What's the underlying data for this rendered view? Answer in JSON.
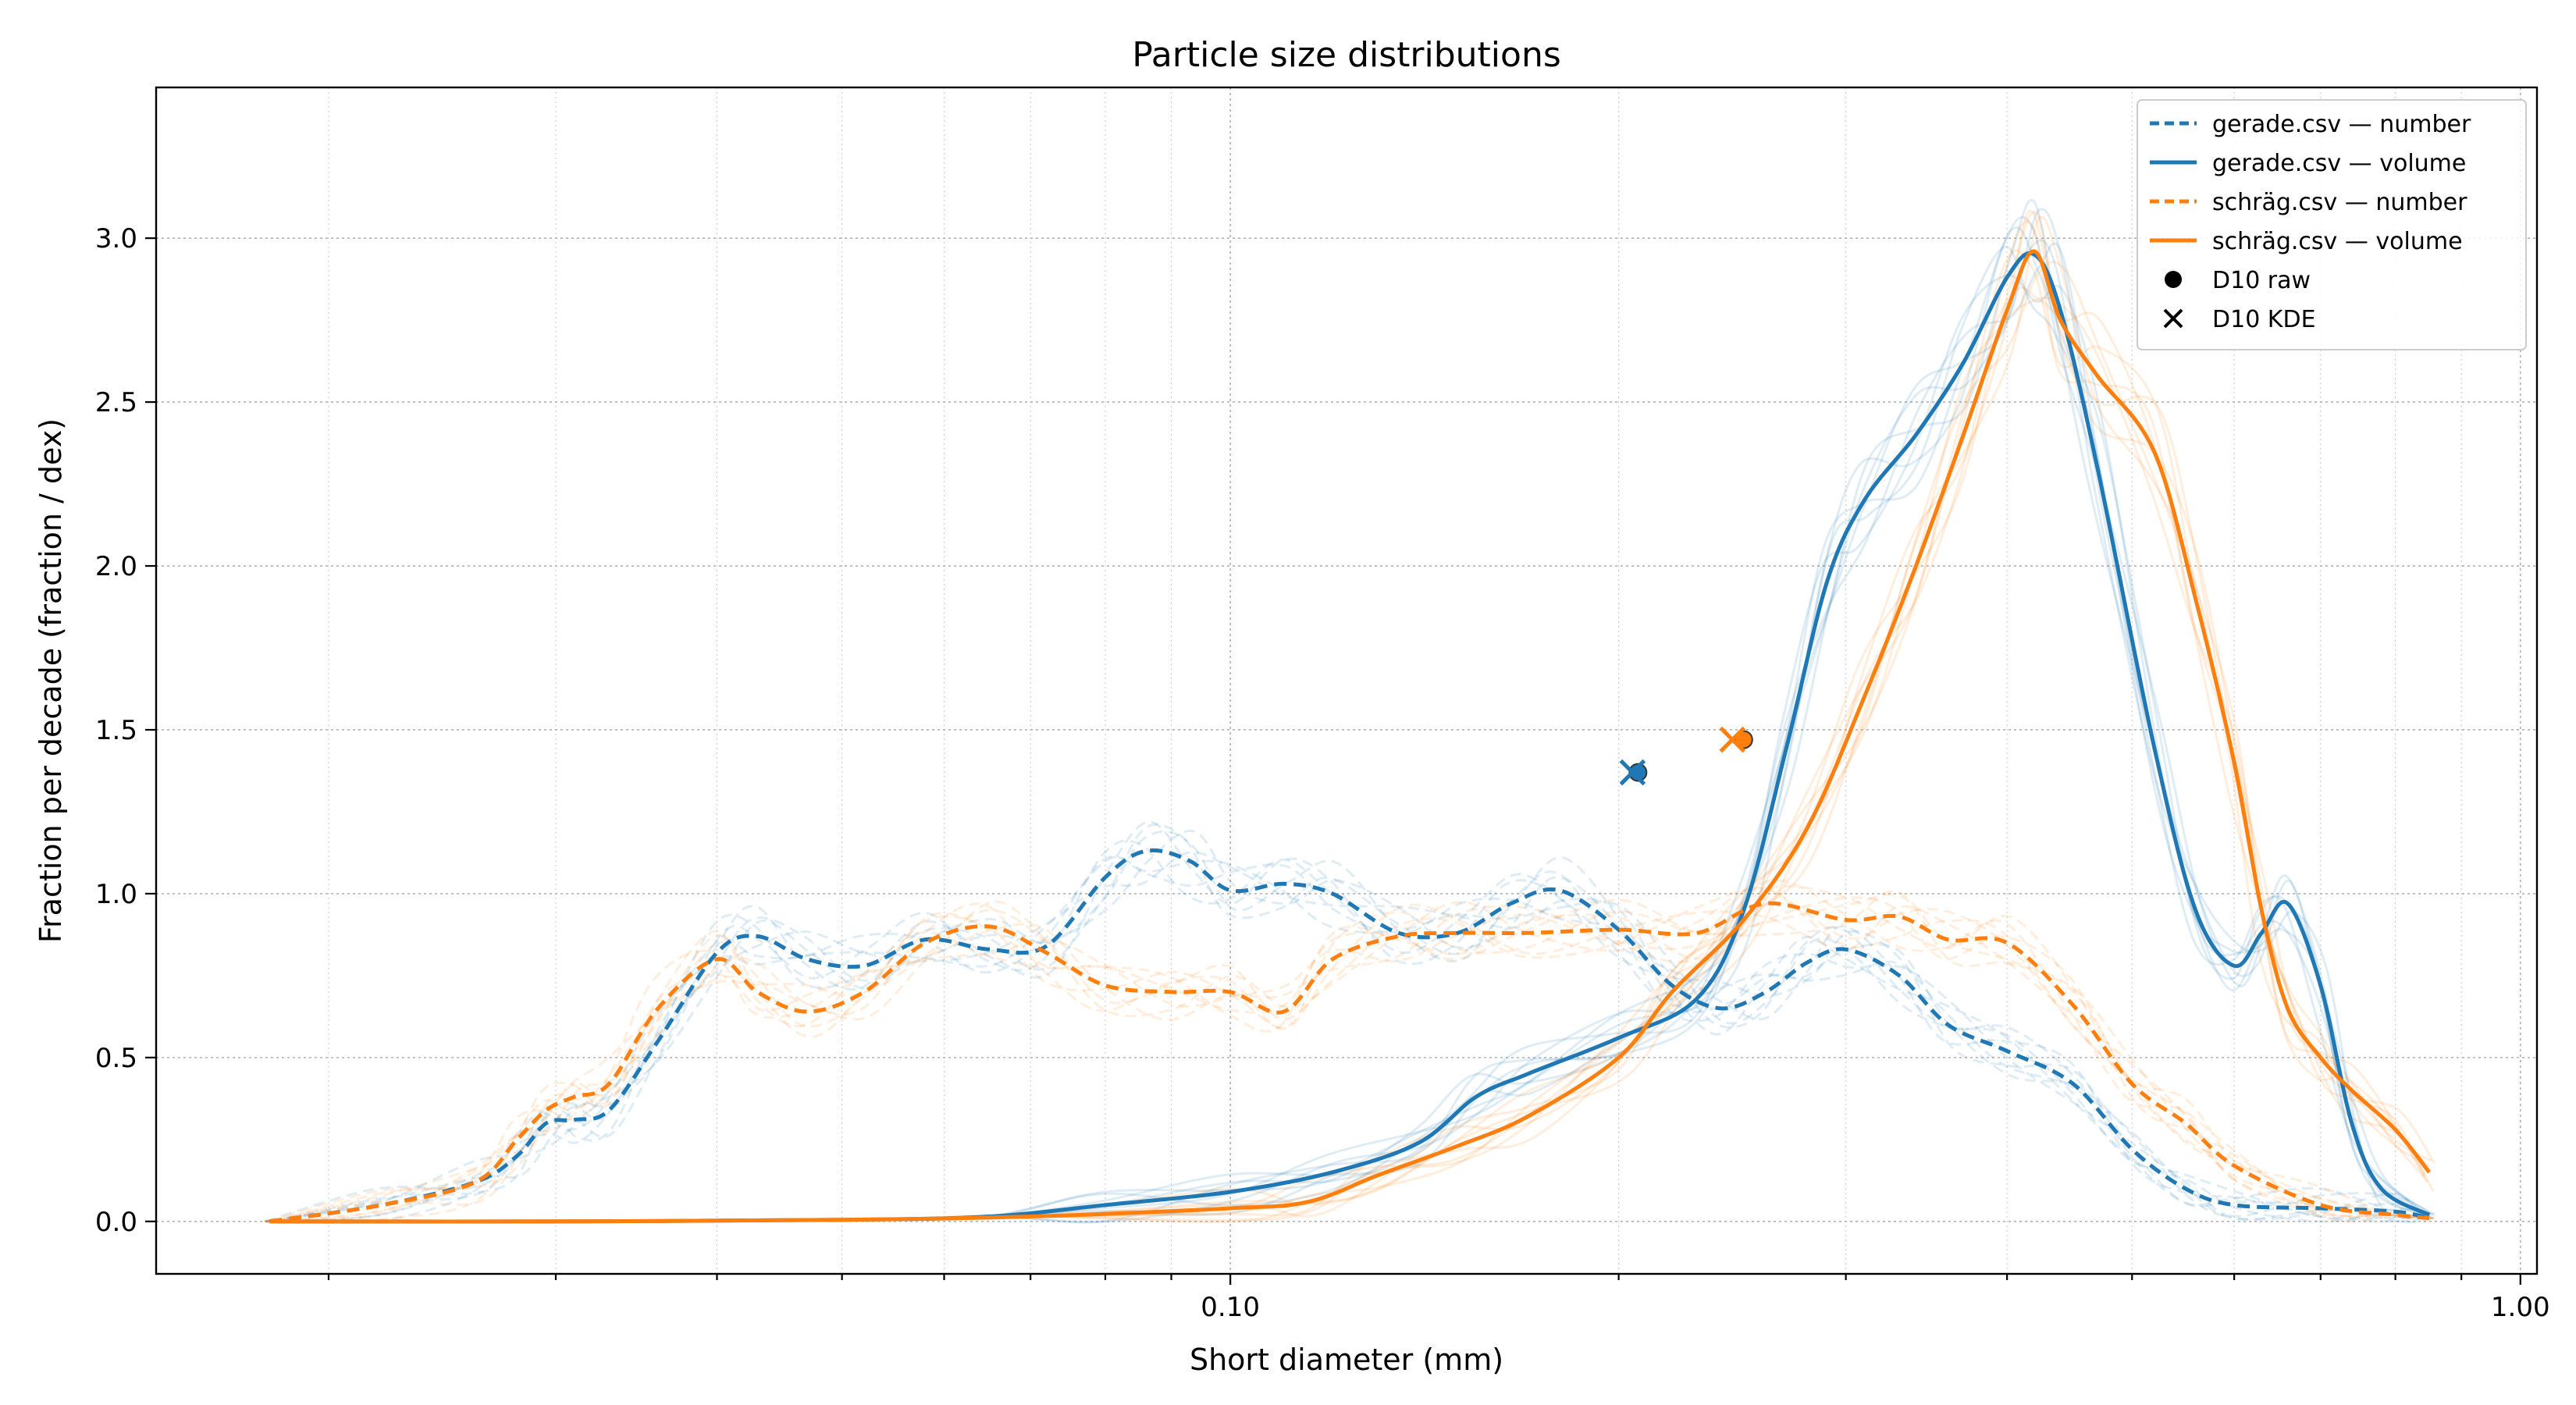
{
  "colors": {
    "blue": "#1f77b4",
    "orange": "#ff7f0e"
  },
  "chart_data": {
    "type": "line",
    "title": "Particle size distributions",
    "xlabel": "Short diameter (mm)",
    "ylabel": "Fraction per decade (fraction / dex)",
    "xscale": "log",
    "xlim": [
      0.0147,
      1.03
    ],
    "ylim": [
      -0.16,
      3.46
    ],
    "xticks": [
      {
        "value": 0.1,
        "label": "0.10"
      },
      {
        "value": 1.0,
        "label": "1.00"
      }
    ],
    "yticks": [
      {
        "value": 0.0,
        "label": "0.0"
      },
      {
        "value": 0.5,
        "label": "0.5"
      },
      {
        "value": 1.0,
        "label": "1.0"
      },
      {
        "value": 1.5,
        "label": "1.5"
      },
      {
        "value": 2.0,
        "label": "2.0"
      },
      {
        "value": 2.5,
        "label": "2.5"
      },
      {
        "value": 3.0,
        "label": "3.0"
      }
    ],
    "grid": true,
    "legend_position": "top-right",
    "series": [
      {
        "name": "gerade.csv — number",
        "color": "#1f77b4",
        "dash": true,
        "x": [
          0.018,
          0.022,
          0.026,
          0.028,
          0.0295,
          0.031,
          0.033,
          0.036,
          0.04,
          0.043,
          0.047,
          0.052,
          0.058,
          0.065,
          0.072,
          0.08,
          0.086,
          0.093,
          0.1,
          0.11,
          0.12,
          0.135,
          0.15,
          0.165,
          0.18,
          0.2,
          0.22,
          0.24,
          0.26,
          0.28,
          0.3,
          0.33,
          0.36,
          0.4,
          0.45,
          0.5,
          0.55,
          0.6,
          0.7,
          0.8,
          0.85
        ],
        "y": [
          0.0,
          0.05,
          0.12,
          0.2,
          0.3,
          0.31,
          0.34,
          0.55,
          0.82,
          0.87,
          0.8,
          0.78,
          0.86,
          0.83,
          0.84,
          1.05,
          1.13,
          1.1,
          1.01,
          1.03,
          1.0,
          0.88,
          0.88,
          0.97,
          1.01,
          0.89,
          0.72,
          0.65,
          0.7,
          0.79,
          0.83,
          0.75,
          0.6,
          0.52,
          0.42,
          0.22,
          0.1,
          0.05,
          0.04,
          0.03,
          0.01
        ]
      },
      {
        "name": "gerade.csv — volume",
        "color": "#1f77b4",
        "dash": false,
        "x": [
          0.018,
          0.03,
          0.05,
          0.065,
          0.08,
          0.1,
          0.12,
          0.14,
          0.155,
          0.17,
          0.2,
          0.23,
          0.25,
          0.27,
          0.29,
          0.31,
          0.34,
          0.37,
          0.4,
          0.42,
          0.44,
          0.47,
          0.52,
          0.56,
          0.6,
          0.63,
          0.66,
          0.7,
          0.74,
          0.78,
          0.85
        ],
        "y": [
          0.0,
          0.0,
          0.005,
          0.015,
          0.05,
          0.09,
          0.15,
          0.24,
          0.38,
          0.45,
          0.56,
          0.68,
          0.95,
          1.45,
          1.95,
          2.2,
          2.4,
          2.62,
          2.88,
          2.95,
          2.78,
          2.3,
          1.45,
          0.95,
          0.78,
          0.88,
          0.97,
          0.72,
          0.3,
          0.1,
          0.02
        ]
      },
      {
        "name": "schräg.csv — number",
        "color": "#ff7f0e",
        "dash": true,
        "x": [
          0.018,
          0.022,
          0.026,
          0.028,
          0.0295,
          0.031,
          0.033,
          0.036,
          0.04,
          0.043,
          0.047,
          0.052,
          0.058,
          0.065,
          0.072,
          0.08,
          0.09,
          0.1,
          0.11,
          0.12,
          0.135,
          0.15,
          0.17,
          0.2,
          0.23,
          0.26,
          0.3,
          0.33,
          0.36,
          0.4,
          0.45,
          0.5,
          0.55,
          0.6,
          0.7,
          0.8,
          0.85
        ],
        "y": [
          0.0,
          0.05,
          0.12,
          0.25,
          0.34,
          0.38,
          0.42,
          0.65,
          0.8,
          0.7,
          0.64,
          0.7,
          0.85,
          0.9,
          0.82,
          0.72,
          0.7,
          0.7,
          0.64,
          0.8,
          0.87,
          0.88,
          0.88,
          0.89,
          0.88,
          0.97,
          0.92,
          0.93,
          0.86,
          0.85,
          0.66,
          0.42,
          0.3,
          0.17,
          0.05,
          0.02,
          0.01
        ]
      },
      {
        "name": "schräg.csv — volume",
        "color": "#ff7f0e",
        "dash": false,
        "x": [
          0.018,
          0.03,
          0.05,
          0.07,
          0.1,
          0.115,
          0.13,
          0.15,
          0.17,
          0.2,
          0.22,
          0.25,
          0.28,
          0.31,
          0.34,
          0.37,
          0.4,
          0.42,
          0.44,
          0.47,
          0.52,
          0.56,
          0.6,
          0.63,
          0.66,
          0.7,
          0.74,
          0.8,
          0.85
        ],
        "y": [
          0.0,
          0.0,
          0.005,
          0.015,
          0.04,
          0.06,
          0.14,
          0.23,
          0.32,
          0.5,
          0.7,
          0.92,
          1.2,
          1.6,
          2.0,
          2.4,
          2.78,
          2.96,
          2.75,
          2.58,
          2.35,
          1.9,
          1.4,
          0.95,
          0.65,
          0.5,
          0.4,
          0.28,
          0.15
        ]
      }
    ],
    "markers": [
      {
        "name": "D10 raw",
        "symbol": "circle",
        "points": [
          {
            "x": 0.207,
            "y": 1.37,
            "color": "#1f77b4"
          },
          {
            "x": 0.25,
            "y": 1.47,
            "color": "#ff7f0e"
          }
        ]
      },
      {
        "name": "D10 KDE",
        "symbol": "x",
        "points": [
          {
            "x": 0.205,
            "y": 1.37,
            "color": "#1f77b4"
          },
          {
            "x": 0.245,
            "y": 1.47,
            "color": "#ff7f0e"
          }
        ]
      }
    ]
  }
}
